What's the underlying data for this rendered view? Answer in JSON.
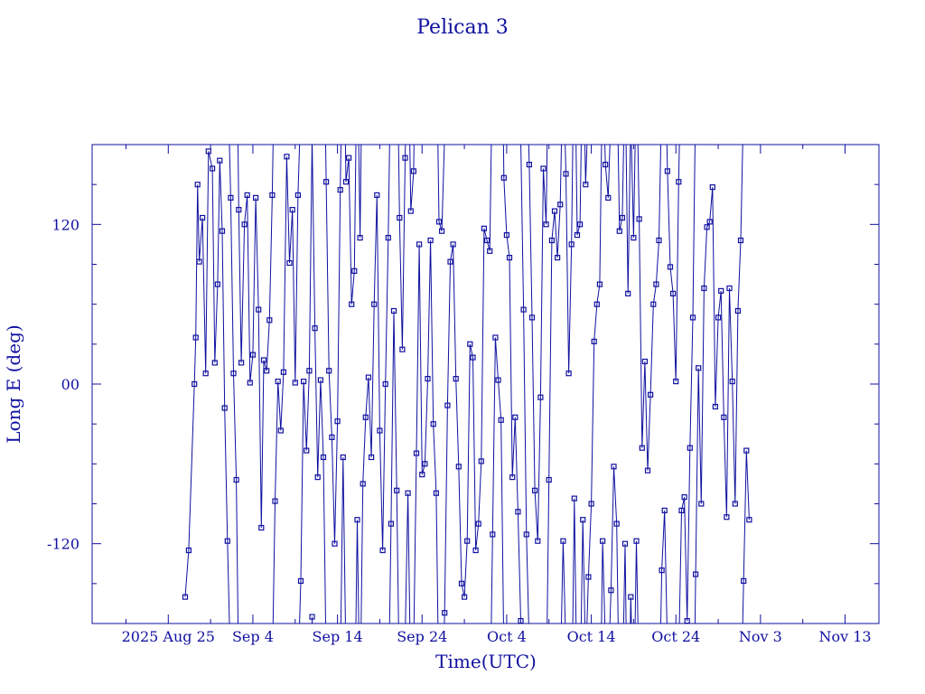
{
  "chart_data": {
    "type": "scatter",
    "title": "Pelican 3",
    "xlabel": "Time(UTC)",
    "ylabel": "Long E (deg)",
    "x_unit": "date",
    "xlim": [
      "2025-08-16",
      "2025-11-17"
    ],
    "ylim": [
      -180,
      180
    ],
    "x_ticks": [
      {
        "date": "2025-08-25",
        "label": "2025 Aug 25"
      },
      {
        "date": "2025-09-04",
        "label": "Sep  4"
      },
      {
        "date": "2025-09-14",
        "label": "Sep 14"
      },
      {
        "date": "2025-09-24",
        "label": "Sep 24"
      },
      {
        "date": "2025-10-04",
        "label": "Oct  4"
      },
      {
        "date": "2025-10-14",
        "label": "Oct 14"
      },
      {
        "date": "2025-10-24",
        "label": "Oct 24"
      },
      {
        "date": "2025-11-03",
        "label": "Nov  3"
      },
      {
        "date": "2025-11-13",
        "label": "Nov 13"
      }
    ],
    "y_ticks": [
      {
        "value": 120,
        "label": "120"
      },
      {
        "value": 0,
        "label": "00"
      },
      {
        "value": -120,
        "label": "-120"
      }
    ],
    "grid": false,
    "legend": "none",
    "series": [
      {
        "color": "#1010a0",
        "marker": "square",
        "points": [
          [
            "2025-08-27T00:00",
            -160
          ],
          [
            "2025-08-27T10:00",
            -125
          ],
          [
            "2025-08-28T02:00",
            0
          ],
          [
            "2025-08-28T06:00",
            35
          ],
          [
            "2025-08-28T11:00",
            150
          ],
          [
            "2025-08-28T16:00",
            92
          ],
          [
            "2025-08-29T01:00",
            125
          ],
          [
            "2025-08-29T10:00",
            8
          ],
          [
            "2025-08-29T18:00",
            175
          ],
          [
            "2025-08-30T05:00",
            162
          ],
          [
            "2025-08-30T12:00",
            16
          ],
          [
            "2025-08-30T20:00",
            75
          ],
          [
            "2025-08-31T02:00",
            168
          ],
          [
            "2025-08-31T09:00",
            115
          ],
          [
            "2025-08-31T16:00",
            -18
          ],
          [
            "2025-09-01T00:00",
            -118
          ],
          [
            "2025-09-01T09:00",
            140
          ],
          [
            "2025-09-01T17:00",
            8
          ],
          [
            "2025-09-02T01:00",
            -72
          ],
          [
            "2025-09-02T08:00",
            131
          ],
          [
            "2025-09-02T15:00",
            16
          ],
          [
            "2025-09-03T00:00",
            120
          ],
          [
            "2025-09-03T08:00",
            142
          ],
          [
            "2025-09-03T16:00",
            1
          ],
          [
            "2025-09-04T00:00",
            22
          ],
          [
            "2025-09-04T08:00",
            140
          ],
          [
            "2025-09-04T16:00",
            56
          ],
          [
            "2025-09-05T00:00",
            -108
          ],
          [
            "2025-09-05T07:00",
            18
          ],
          [
            "2025-09-05T15:00",
            10
          ],
          [
            "2025-09-05T23:00",
            48
          ],
          [
            "2025-09-06T07:00",
            142
          ],
          [
            "2025-09-06T15:00",
            -88
          ],
          [
            "2025-09-06T23:00",
            2
          ],
          [
            "2025-09-07T07:00",
            -35
          ],
          [
            "2025-09-07T15:00",
            9
          ],
          [
            "2025-09-08T00:00",
            171
          ],
          [
            "2025-09-08T08:00",
            91
          ],
          [
            "2025-09-08T16:00",
            131
          ],
          [
            "2025-09-09T00:00",
            1
          ],
          [
            "2025-09-09T08:00",
            142
          ],
          [
            "2025-09-09T16:00",
            -148
          ],
          [
            "2025-09-10T00:00",
            2
          ],
          [
            "2025-09-10T08:00",
            -50
          ],
          [
            "2025-09-10T16:00",
            10
          ],
          [
            "2025-09-11T00:00",
            -175
          ],
          [
            "2025-09-11T08:00",
            42
          ],
          [
            "2025-09-11T16:00",
            -70
          ],
          [
            "2025-09-12T00:00",
            3
          ],
          [
            "2025-09-12T08:00",
            -55
          ],
          [
            "2025-09-12T16:00",
            152
          ],
          [
            "2025-09-13T00:00",
            10
          ],
          [
            "2025-09-13T08:00",
            -40
          ],
          [
            "2025-09-13T16:00",
            -120
          ],
          [
            "2025-09-14T00:00",
            -28
          ],
          [
            "2025-09-14T08:00",
            146
          ],
          [
            "2025-09-14T16:00",
            -55
          ],
          [
            "2025-09-15T00:00",
            152
          ],
          [
            "2025-09-15T08:00",
            170
          ],
          [
            "2025-09-15T16:00",
            60
          ],
          [
            "2025-09-16T00:00",
            85
          ],
          [
            "2025-09-16T08:00",
            -102
          ],
          [
            "2025-09-16T16:00",
            110
          ],
          [
            "2025-09-17T00:00",
            -75
          ],
          [
            "2025-09-17T08:00",
            -25
          ],
          [
            "2025-09-17T16:00",
            5
          ],
          [
            "2025-09-18T00:00",
            -55
          ],
          [
            "2025-09-18T08:00",
            60
          ],
          [
            "2025-09-18T16:00",
            142
          ],
          [
            "2025-09-19T00:00",
            -35
          ],
          [
            "2025-09-19T08:00",
            -125
          ],
          [
            "2025-09-19T16:00",
            0
          ],
          [
            "2025-09-20T00:00",
            110
          ],
          [
            "2025-09-20T08:00",
            -105
          ],
          [
            "2025-09-20T16:00",
            55
          ],
          [
            "2025-09-21T00:00",
            -80
          ],
          [
            "2025-09-21T08:00",
            125
          ],
          [
            "2025-09-21T16:00",
            26
          ],
          [
            "2025-09-22T00:00",
            170
          ],
          [
            "2025-09-22T08:00",
            -82
          ],
          [
            "2025-09-22T16:00",
            130
          ],
          [
            "2025-09-23T00:00",
            160
          ],
          [
            "2025-09-23T08:00",
            -52
          ],
          [
            "2025-09-23T16:00",
            105
          ],
          [
            "2025-09-24T00:00",
            -68
          ],
          [
            "2025-09-24T08:00",
            -60
          ],
          [
            "2025-09-24T16:00",
            4
          ],
          [
            "2025-09-25T00:00",
            108
          ],
          [
            "2025-09-25T08:00",
            -30
          ],
          [
            "2025-09-25T16:00",
            -82
          ],
          [
            "2025-09-26T00:00",
            122
          ],
          [
            "2025-09-26T08:00",
            115
          ],
          [
            "2025-09-26T16:00",
            -172
          ],
          [
            "2025-09-27T00:00",
            -16
          ],
          [
            "2025-09-27T08:00",
            92
          ],
          [
            "2025-09-27T16:00",
            105
          ],
          [
            "2025-09-28T00:00",
            4
          ],
          [
            "2025-09-28T08:00",
            -62
          ],
          [
            "2025-09-28T16:00",
            -150
          ],
          [
            "2025-09-29T00:00",
            -160
          ],
          [
            "2025-09-29T08:00",
            -118
          ],
          [
            "2025-09-29T16:00",
            30
          ],
          [
            "2025-09-30T00:00",
            20
          ],
          [
            "2025-09-30T08:00",
            -125
          ],
          [
            "2025-09-30T16:00",
            -105
          ],
          [
            "2025-10-01T00:00",
            -58
          ],
          [
            "2025-10-01T08:00",
            117
          ],
          [
            "2025-10-01T16:00",
            108
          ],
          [
            "2025-10-02T00:00",
            100
          ],
          [
            "2025-10-02T08:00",
            -113
          ],
          [
            "2025-10-02T16:00",
            35
          ],
          [
            "2025-10-03T00:00",
            3
          ],
          [
            "2025-10-03T08:00",
            -27
          ],
          [
            "2025-10-03T16:00",
            155
          ],
          [
            "2025-10-04T00:00",
            112
          ],
          [
            "2025-10-04T08:00",
            95
          ],
          [
            "2025-10-04T16:00",
            -70
          ],
          [
            "2025-10-05T00:00",
            -25
          ],
          [
            "2025-10-05T08:00",
            -96
          ],
          [
            "2025-10-05T16:00",
            -178
          ],
          [
            "2025-10-06T00:00",
            56
          ],
          [
            "2025-10-06T08:00",
            -113
          ],
          [
            "2025-10-06T16:00",
            165
          ],
          [
            "2025-10-07T00:00",
            50
          ],
          [
            "2025-10-07T08:00",
            -80
          ],
          [
            "2025-10-07T16:00",
            -118
          ],
          [
            "2025-10-08T00:00",
            -10
          ],
          [
            "2025-10-08T08:00",
            162
          ],
          [
            "2025-10-08T16:00",
            120
          ],
          [
            "2025-10-09T00:00",
            -72
          ],
          [
            "2025-10-09T08:00",
            108
          ],
          [
            "2025-10-09T16:00",
            130
          ],
          [
            "2025-10-10T00:00",
            95
          ],
          [
            "2025-10-10T08:00",
            135
          ],
          [
            "2025-10-10T16:00",
            -118
          ],
          [
            "2025-10-11T00:00",
            158
          ],
          [
            "2025-10-11T08:00",
            8
          ],
          [
            "2025-10-11T16:00",
            105
          ],
          [
            "2025-10-12T00:00",
            -86
          ],
          [
            "2025-10-12T08:00",
            112
          ],
          [
            "2025-10-12T16:00",
            120
          ],
          [
            "2025-10-13T00:00",
            -102
          ],
          [
            "2025-10-13T08:00",
            150
          ],
          [
            "2025-10-13T16:00",
            -145
          ],
          [
            "2025-10-14T00:00",
            -90
          ],
          [
            "2025-10-14T08:00",
            32
          ],
          [
            "2025-10-14T16:00",
            60
          ],
          [
            "2025-10-15T00:00",
            75
          ],
          [
            "2025-10-15T08:00",
            -118
          ],
          [
            "2025-10-15T16:00",
            165
          ],
          [
            "2025-10-16T00:00",
            140
          ],
          [
            "2025-10-16T08:00",
            -155
          ],
          [
            "2025-10-16T16:00",
            -62
          ],
          [
            "2025-10-17T00:00",
            -105
          ],
          [
            "2025-10-17T08:00",
            115
          ],
          [
            "2025-10-17T16:00",
            125
          ],
          [
            "2025-10-18T00:00",
            -120
          ],
          [
            "2025-10-18T08:00",
            68
          ],
          [
            "2025-10-18T16:00",
            -160
          ],
          [
            "2025-10-19T00:00",
            110
          ],
          [
            "2025-10-19T08:00",
            -118
          ],
          [
            "2025-10-19T16:00",
            124
          ],
          [
            "2025-10-20T00:00",
            -48
          ],
          [
            "2025-10-20T08:00",
            17
          ],
          [
            "2025-10-20T16:00",
            -65
          ],
          [
            "2025-10-21T00:00",
            -8
          ],
          [
            "2025-10-21T08:00",
            60
          ],
          [
            "2025-10-21T16:00",
            75
          ],
          [
            "2025-10-22T00:00",
            108
          ],
          [
            "2025-10-22T08:00",
            -140
          ],
          [
            "2025-10-22T16:00",
            -95
          ],
          [
            "2025-10-23T00:00",
            160
          ],
          [
            "2025-10-23T08:00",
            88
          ],
          [
            "2025-10-23T16:00",
            68
          ],
          [
            "2025-10-24T00:00",
            2
          ],
          [
            "2025-10-24T08:00",
            152
          ],
          [
            "2025-10-24T16:00",
            -95
          ],
          [
            "2025-10-25T00:00",
            -85
          ],
          [
            "2025-10-25T08:00",
            -178
          ],
          [
            "2025-10-25T16:00",
            -48
          ],
          [
            "2025-10-26T00:00",
            50
          ],
          [
            "2025-10-26T08:00",
            -143
          ],
          [
            "2025-10-26T16:00",
            12
          ],
          [
            "2025-10-27T00:00",
            -90
          ],
          [
            "2025-10-27T08:00",
            72
          ],
          [
            "2025-10-27T16:00",
            118
          ],
          [
            "2025-10-28T00:00",
            122
          ],
          [
            "2025-10-28T08:00",
            148
          ],
          [
            "2025-10-28T16:00",
            -17
          ],
          [
            "2025-10-29T00:00",
            50
          ],
          [
            "2025-10-29T08:00",
            70
          ],
          [
            "2025-10-29T16:00",
            -25
          ],
          [
            "2025-10-30T00:00",
            -100
          ],
          [
            "2025-10-30T08:00",
            72
          ],
          [
            "2025-10-30T16:00",
            2
          ],
          [
            "2025-10-31T00:00",
            -90
          ],
          [
            "2025-10-31T08:00",
            55
          ],
          [
            "2025-10-31T16:00",
            108
          ],
          [
            "2025-11-01T00:00",
            -148
          ],
          [
            "2025-11-01T08:00",
            -50
          ],
          [
            "2025-11-01T16:00",
            -102
          ]
        ]
      }
    ]
  }
}
